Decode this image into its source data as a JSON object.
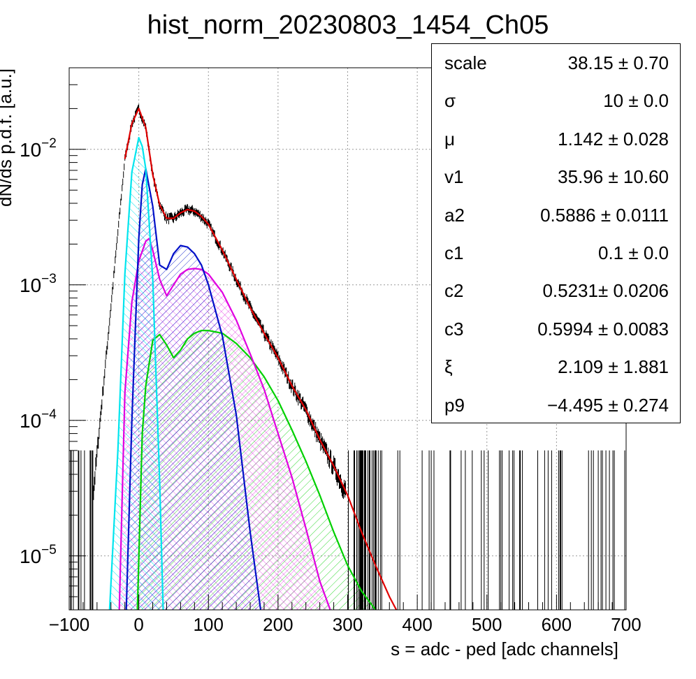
{
  "chart_data": {
    "type": "line",
    "title": "hist_norm_20230803_1454_Ch05",
    "xlabel": "s = adc - ped [adc channels]",
    "ylabel": "dN/ds p.d.f. [a.u.]",
    "xlim": [
      -100,
      700
    ],
    "ylim": [
      4e-06,
      0.04
    ],
    "yscale": "log",
    "grid": true,
    "x_ticks": [
      "−100",
      "0",
      "100",
      "200",
      "300",
      "400",
      "500",
      "600",
      "700"
    ],
    "y_ticks": [
      {
        "base": "10",
        "exp": "−5"
      },
      {
        "base": "10",
        "exp": "−4"
      },
      {
        "base": "10",
        "exp": "−3"
      },
      {
        "base": "10",
        "exp": "−2"
      }
    ],
    "colors": {
      "data": "#000000",
      "total_fit": "#e00000",
      "pedestal": "#00e5ee",
      "one_pe": "#0010c8",
      "two_pe": "#e000e0",
      "three_pe": "#00d000"
    },
    "series": [
      {
        "key": "total_fit",
        "x": [
          -20,
          -10,
          0,
          10,
          20,
          30,
          40,
          50,
          60,
          70,
          80,
          90,
          100,
          120,
          140,
          160,
          180,
          200,
          220,
          240,
          260,
          280,
          300,
          320,
          340,
          360,
          370
        ],
        "y": [
          0.0085,
          0.0155,
          0.02,
          0.0145,
          0.0065,
          0.0039,
          0.0031,
          0.0031,
          0.0034,
          0.0036,
          0.0035,
          0.0032,
          0.0028,
          0.0018,
          0.0011,
          0.00068,
          0.00044,
          0.00029,
          0.00018,
          0.00012,
          7.2e-05,
          4.6e-05,
          2.8e-05,
          1.5e-05,
          8.5e-06,
          5e-06,
          4e-06
        ]
      },
      {
        "key": "pedestal",
        "x": [
          -42,
          -30,
          -20,
          -10,
          0,
          5,
          10,
          20,
          30,
          35
        ],
        "y": [
          4e-06,
          6e-05,
          0.0012,
          0.0068,
          0.0122,
          0.0105,
          0.0072,
          0.0011,
          3.5e-05,
          4e-06
        ]
      },
      {
        "key": "one_pe",
        "x": [
          -18,
          -10,
          0,
          5,
          10,
          20,
          30,
          40,
          50,
          60,
          70,
          80,
          90,
          100,
          120,
          140,
          160,
          175
        ],
        "y": [
          4e-06,
          0.0001,
          0.0022,
          0.0055,
          0.0072,
          0.0038,
          0.0014,
          0.0013,
          0.0017,
          0.00195,
          0.0019,
          0.0017,
          0.0014,
          0.001,
          0.00042,
          0.00011,
          1.5e-05,
          4e-06
        ]
      },
      {
        "key": "two_pe",
        "x": [
          -28,
          -20,
          -10,
          0,
          10,
          15,
          20,
          30,
          40,
          50,
          60,
          70,
          80,
          90,
          100,
          120,
          140,
          160,
          180,
          200,
          220,
          240,
          260,
          275
        ],
        "y": [
          4e-06,
          0.00016,
          0.00075,
          0.0015,
          0.0021,
          0.0022,
          0.0018,
          0.0011,
          0.00083,
          0.001,
          0.0012,
          0.0013,
          0.00132,
          0.0013,
          0.0012,
          0.00088,
          0.00055,
          0.00031,
          0.00017,
          8e-05,
          3.8e-05,
          1.6e-05,
          6.5e-06,
          4e-06
        ]
      },
      {
        "key": "three_pe",
        "x": [
          -2,
          5,
          10,
          20,
          30,
          40,
          50,
          60,
          70,
          80,
          90,
          100,
          120,
          140,
          160,
          180,
          200,
          220,
          240,
          260,
          280,
          300,
          320,
          340
        ],
        "y": [
          4e-06,
          8e-05,
          0.00018,
          0.00039,
          0.00043,
          0.00036,
          0.00029,
          0.00033,
          0.0004,
          0.00044,
          0.00046,
          0.00046,
          0.00044,
          0.00037,
          0.00029,
          0.00021,
          0.00014,
          8.5e-05,
          5e-05,
          2.8e-05,
          1.5e-05,
          8.5e-06,
          5.5e-06,
          4e-06
        ]
      }
    ]
  },
  "stats": [
    {
      "key": "scale",
      "value": "38.15 ± 0.70"
    },
    {
      "key": "σ",
      "value": "10 ± 0.0"
    },
    {
      "key": "μ",
      "value": "1.142 ± 0.028"
    },
    {
      "key": "v1",
      "value": "35.96 ± 10.60"
    },
    {
      "key": "a2",
      "value": "0.5886 ± 0.0111"
    },
    {
      "key": "c1",
      "value": "0.1 ± 0.0"
    },
    {
      "key": "c2",
      "value": "0.5231± 0.0206"
    },
    {
      "key": "c3",
      "value": "0.5994 ± 0.0083"
    },
    {
      "key": "ξ",
      "value": "2.109 ± 1.881"
    },
    {
      "key": "p9",
      "value": "−4.495 ± 0.274"
    }
  ]
}
